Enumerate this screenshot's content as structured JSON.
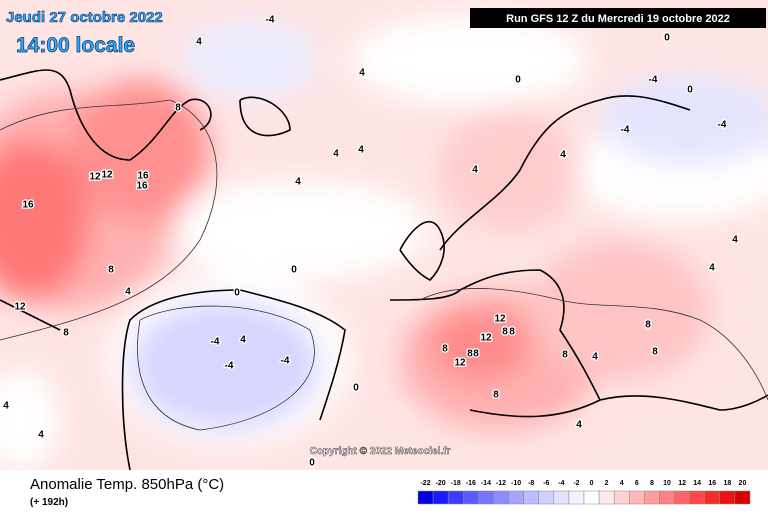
{
  "header": {
    "date": "Jeudi 27 octobre 2022",
    "time": "14:00 locale",
    "run": "Run GFS 12 Z du Mercredi 19 octobre 2022"
  },
  "copyright": "Copyright © 2022 Meteociel.fr",
  "footer": {
    "title": "Anomalie Temp. 850hPa (°C)",
    "lead": "(+ 192h)"
  },
  "contour_labels": [
    16,
    12,
    12,
    16,
    16,
    8,
    8,
    12,
    8,
    4,
    4,
    0,
    -4,
    -4,
    -4,
    0,
    4,
    4,
    0,
    0,
    4,
    4,
    4,
    4,
    4,
    0,
    -4,
    -4,
    -4,
    0,
    4,
    4,
    12,
    12,
    8,
    8,
    8,
    8,
    8,
    12,
    8,
    4,
    8,
    8,
    8,
    4,
    4,
    4,
    0,
    -4
  ],
  "colorbar": {
    "ticks": [
      -22,
      -20,
      -18,
      -16,
      -14,
      -12,
      -10,
      -8,
      -6,
      -4,
      -2,
      0,
      2,
      4,
      6,
      8,
      10,
      12,
      14,
      16,
      18,
      20
    ],
    "colors": [
      "#0000e0",
      "#1a1aff",
      "#3c3cff",
      "#5a5aff",
      "#7474ff",
      "#8c8cff",
      "#a4a4ff",
      "#bcbcff",
      "#d0d0ff",
      "#e2e2ff",
      "#f2f2ff",
      "#ffffff",
      "#ffeaea",
      "#ffd2d2",
      "#ffb8b8",
      "#ff9c9c",
      "#ff8080",
      "#ff6464",
      "#ff4848",
      "#f52c2c",
      "#e81414",
      "#d80000"
    ]
  }
}
